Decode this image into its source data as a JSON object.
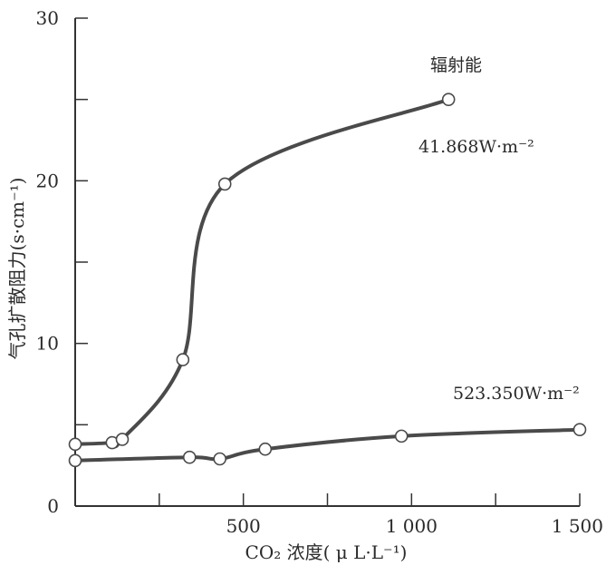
{
  "chart_data": {
    "type": "line",
    "xlabel": "CO₂ 浓度( μ L·L⁻¹)",
    "ylabel": "气孔扩散阻力(s·cm⁻¹)",
    "xlim": [
      0,
      1500
    ],
    "ylim": [
      0,
      30
    ],
    "xticks": [
      0,
      250,
      500,
      750,
      1000,
      1250,
      1500
    ],
    "xtick_labels": [
      "500",
      "1 000",
      "1 500"
    ],
    "xtick_label_values": [
      500,
      1000,
      1500
    ],
    "yticks": [
      0,
      5,
      10,
      15,
      20,
      25,
      30
    ],
    "ytick_labels": [
      "0",
      "10",
      "20",
      "30"
    ],
    "ytick_label_values": [
      0,
      10,
      20,
      30
    ],
    "grid": false,
    "annotations": {
      "radiation_label": "辐射能",
      "high_label": "41.868W·m⁻²",
      "low_label": "523.350W·m⁻²"
    },
    "series": [
      {
        "name": "41.868W·m⁻²",
        "x": [
          0,
          110,
          140,
          320,
          445,
          1110
        ],
        "y": [
          3.8,
          3.9,
          4.1,
          9.0,
          19.8,
          25.0
        ]
      },
      {
        "name": "523.350W·m⁻²",
        "x": [
          0,
          340,
          430,
          565,
          970,
          1500
        ],
        "y": [
          2.8,
          3.0,
          2.9,
          3.5,
          4.3,
          4.7
        ]
      }
    ],
    "colors": {
      "axis": "#333333",
      "line": "#4a4a4a",
      "marker_fill": "#ffffff"
    }
  }
}
